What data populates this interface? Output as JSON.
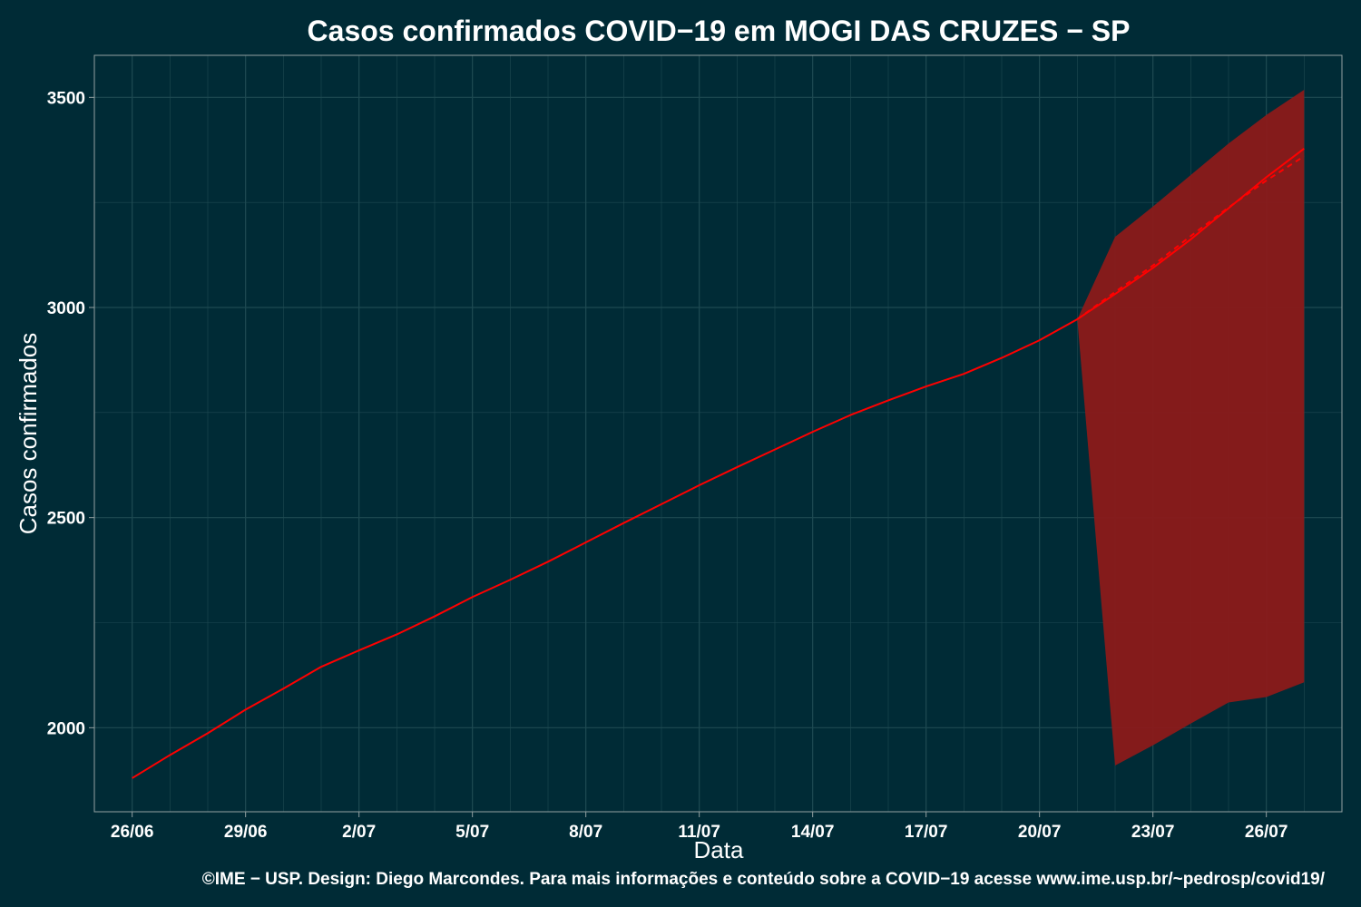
{
  "chart_data": {
    "type": "line",
    "title": "Casos confirmados COVID−19 em MOGI DAS CRUZES − SP",
    "xlabel": "Data",
    "ylabel": "Casos confirmados",
    "caption": "©IME − USP. Design: Diego Marcondes. Para mais informações e conteúdo sobre a COVID−19 acesse www.ime.usp.br/~pedrosp/covid19/",
    "x_tick_labels": [
      "26/06",
      "29/06",
      "2/07",
      "5/07",
      "8/07",
      "11/07",
      "14/07",
      "17/07",
      "20/07",
      "23/07",
      "26/07"
    ],
    "y_ticks": [
      2000,
      2500,
      3000,
      3500
    ],
    "xlim": [
      "2020-06-25",
      "2020-07-28"
    ],
    "ylim": [
      1800,
      3600
    ],
    "grid": true,
    "colors": {
      "background": "#002b36",
      "grid": "#1e4a52",
      "line": "#ff0000",
      "ribbon": "#8b1a1a",
      "text": "#ffffff"
    },
    "series": [
      {
        "kind": "observed",
        "x": [
          "2020-06-26",
          "2020-06-27",
          "2020-06-28",
          "2020-06-29",
          "2020-06-30",
          "2020-07-01",
          "2020-07-02",
          "2020-07-03",
          "2020-07-04",
          "2020-07-05",
          "2020-07-06",
          "2020-07-07",
          "2020-07-08",
          "2020-07-09",
          "2020-07-10",
          "2020-07-11",
          "2020-07-12",
          "2020-07-13",
          "2020-07-14",
          "2020-07-15",
          "2020-07-16",
          "2020-07-17",
          "2020-07-18",
          "2020-07-19",
          "2020-07-20",
          "2020-07-21"
        ],
        "y": [
          1880,
          1935,
          1987,
          2043,
          2093,
          2145,
          2184,
          2222,
          2265,
          2311,
          2352,
          2395,
          2441,
          2487,
          2532,
          2577,
          2620,
          2662,
          2704,
          2744,
          2779,
          2812,
          2842,
          2880,
          2922,
          2972
        ]
      },
      {
        "kind": "predicted",
        "x": [
          "2020-07-21",
          "2020-07-22",
          "2020-07-23",
          "2020-07-24",
          "2020-07-25",
          "2020-07-26",
          "2020-07-27"
        ],
        "y": [
          2972,
          3032,
          3094,
          3162,
          3236,
          3310,
          3378
        ]
      },
      {
        "kind": "predicted-dashed",
        "x": [
          "2020-07-21",
          "2020-07-22",
          "2020-07-23",
          "2020-07-24",
          "2020-07-25",
          "2020-07-26",
          "2020-07-27"
        ],
        "y": [
          2972,
          3037,
          3100,
          3170,
          3238,
          3302,
          3360
        ]
      }
    ],
    "band": {
      "x": [
        "2020-07-21",
        "2020-07-22",
        "2020-07-23",
        "2020-07-24",
        "2020-07-25",
        "2020-07-26",
        "2020-07-27"
      ],
      "upper": [
        2972,
        3168,
        3240,
        3315,
        3390,
        3458,
        3518
      ],
      "lower": [
        2972,
        1910,
        1958,
        2010,
        2060,
        2073,
        2108
      ]
    }
  }
}
